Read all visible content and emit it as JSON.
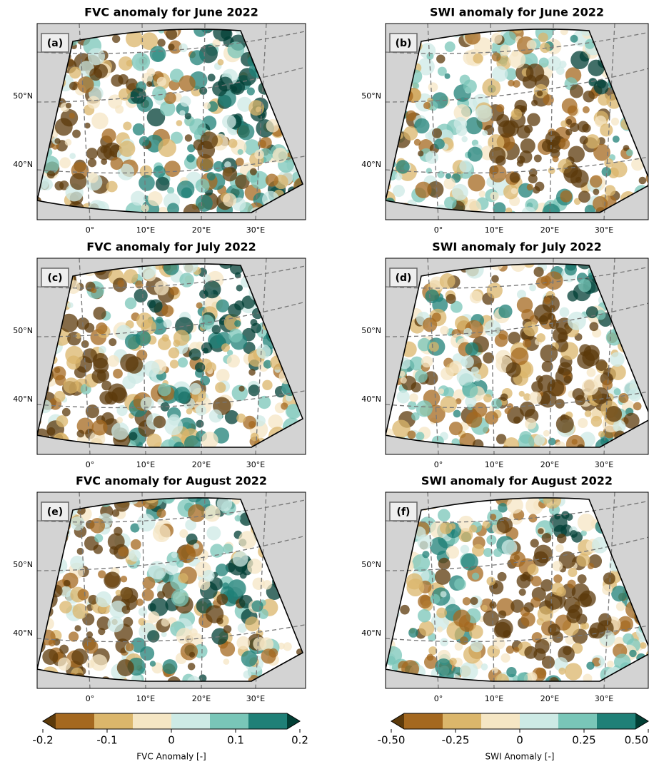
{
  "panels": [
    {
      "title": "FVC anomaly for June 2022",
      "label": "(a)",
      "lat_ticks": [
        "50°N",
        "40°N"
      ],
      "lon_ticks": [
        "0°",
        "10°E",
        "20°E",
        "30°E"
      ]
    },
    {
      "title": "SWI anomaly for June 2022",
      "label": "(b)",
      "lat_ticks": [
        "50°N",
        "40°N"
      ],
      "lon_ticks": [
        "0°",
        "10°E",
        "20°E",
        "30°E"
      ]
    },
    {
      "title": "FVC anomaly for July 2022",
      "label": "(c)",
      "lat_ticks": [
        "50°N",
        "40°N"
      ],
      "lon_ticks": [
        "0°",
        "10°E",
        "20°E",
        "30°E"
      ]
    },
    {
      "title": "SWI anomaly for July 2022",
      "label": "(d)",
      "lat_ticks": [
        "50°N",
        "40°N"
      ],
      "lon_ticks": [
        "0°",
        "10°E",
        "20°E",
        "30°E"
      ]
    },
    {
      "title": "FVC anomaly for August 2022",
      "label": "(e)",
      "lat_ticks": [
        "50°N",
        "40°N"
      ],
      "lon_ticks": [
        "0°",
        "10°E",
        "20°E",
        "30°E"
      ]
    },
    {
      "title": "SWI anomaly for August 2022",
      "label": "(f)",
      "lat_ticks": [
        "50°N",
        "40°N"
      ],
      "lon_ticks": [
        "0°",
        "10°E",
        "20°E",
        "30°E"
      ]
    }
  ],
  "colorbars": [
    {
      "label": "FVC Anomaly [-]",
      "ticks": [
        -0.2,
        -0.1,
        0,
        0.1,
        0.2
      ],
      "colors": [
        "#5c3a0b",
        "#a4681f",
        "#dbb66b",
        "#f5e6c4",
        "#cdeae5",
        "#79c6b8",
        "#1f8077",
        "#023f35"
      ]
    },
    {
      "label": "SWI Anomaly [-]",
      "ticks": [
        {
          "value": -0.5,
          "label": "-0.50"
        },
        -0.25,
        0,
        0.25,
        {
          "value": 0.5,
          "label": "0.50"
        }
      ],
      "colors": [
        "#5c3a0b",
        "#a4681f",
        "#dbb66b",
        "#f5e6c4",
        "#cdeae5",
        "#79c6b8",
        "#1f8077",
        "#023f35"
      ]
    }
  ]
}
